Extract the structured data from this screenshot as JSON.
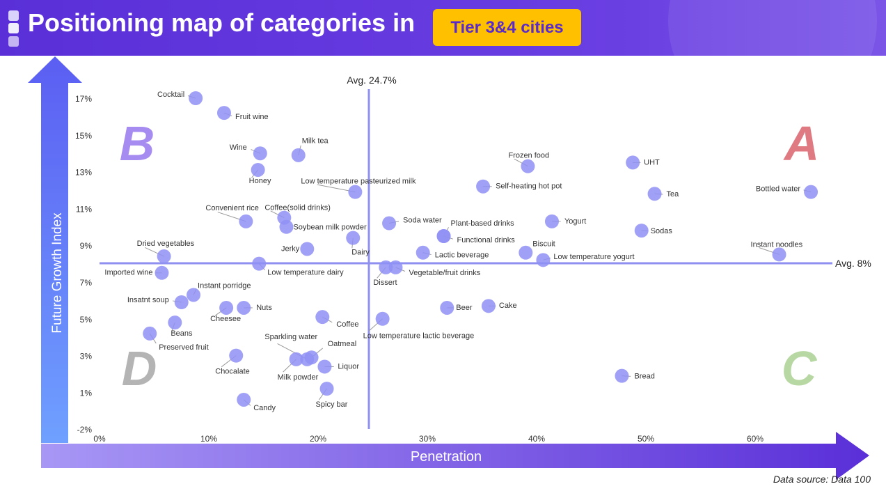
{
  "header": {
    "title": "Positioning map of categories in",
    "badge": "Tier 3&4 cities"
  },
  "footer": {
    "source": "Data source: Data 100"
  },
  "colors": {
    "header": "#5a2fd8",
    "badge": "#ffc000",
    "dot": "#8f91f5",
    "avg_line": "#8f8ff0",
    "quad_A": "#e07a82",
    "quad_B": "#a68cf0",
    "quad_C": "#b7d8a3",
    "quad_D": "#b4b4b4"
  },
  "chart_data": {
    "type": "scatter",
    "xlabel": "Penetration",
    "ylabel": "Future Growth Index",
    "x_ticks": [
      "0%",
      "10%",
      "20%",
      "30%",
      "40%",
      "50%",
      "60%"
    ],
    "y_ticks": [
      "17%",
      "15%",
      "13%",
      "11%",
      "9%",
      "7%",
      "5%",
      "3%",
      "1%",
      "-2%"
    ],
    "avg_x": {
      "value": 24.7,
      "label": "Avg. 24.7%"
    },
    "avg_y": {
      "value": 8,
      "label": "Avg. 8%"
    },
    "quadrants": [
      "A",
      "B",
      "C",
      "D"
    ],
    "points": [
      {
        "name": "Cocktail",
        "x": 8.8,
        "y": 17.0
      },
      {
        "name": "Fruit wine",
        "x": 11.4,
        "y": 16.2
      },
      {
        "name": "Wine",
        "x": 14.7,
        "y": 14.0
      },
      {
        "name": "Milk tea",
        "x": 18.2,
        "y": 13.9
      },
      {
        "name": "Honey",
        "x": 14.5,
        "y": 13.1
      },
      {
        "name": "Low temperature pasteurized milk",
        "x": 23.4,
        "y": 11.9
      },
      {
        "name": "Convenient rice",
        "x": 13.4,
        "y": 10.3
      },
      {
        "name": "Coffee(solid drinks)",
        "x": 16.9,
        "y": 10.5
      },
      {
        "name": "Soybean milk powder",
        "x": 17.1,
        "y": 10.0
      },
      {
        "name": "Jerky",
        "x": 19.0,
        "y": 8.8
      },
      {
        "name": "Dairy",
        "x": 23.2,
        "y": 9.4
      },
      {
        "name": "Soda water",
        "x": 26.5,
        "y": 10.2
      },
      {
        "name": "Plant-based drinks",
        "x": 31.5,
        "y": 9.5
      },
      {
        "name": "Functional drinks",
        "x": 31.5,
        "y": 9.5
      },
      {
        "name": "Lactic beverage",
        "x": 29.6,
        "y": 8.6
      },
      {
        "name": "Self-heating hot pot",
        "x": 35.1,
        "y": 12.2
      },
      {
        "name": "Frozen food",
        "x": 39.2,
        "y": 13.3
      },
      {
        "name": "UHT",
        "x": 48.8,
        "y": 13.5
      },
      {
        "name": "Tea",
        "x": 50.8,
        "y": 11.8
      },
      {
        "name": "Bottled water",
        "x": 65.1,
        "y": 11.9
      },
      {
        "name": "Yogurt",
        "x": 41.4,
        "y": 10.3
      },
      {
        "name": "Sodas",
        "x": 49.6,
        "y": 9.8
      },
      {
        "name": "Biscuit",
        "x": 39.0,
        "y": 8.6
      },
      {
        "name": "Low temperature yogurt",
        "x": 40.6,
        "y": 8.2
      },
      {
        "name": "Instant noodles",
        "x": 62.2,
        "y": 8.5
      },
      {
        "name": "Dried vegetables",
        "x": 5.9,
        "y": 8.4
      },
      {
        "name": "Imported wine",
        "x": 5.7,
        "y": 7.5
      },
      {
        "name": "Low temperature dairy",
        "x": 14.6,
        "y": 8.0
      },
      {
        "name": "Dissert",
        "x": 26.2,
        "y": 7.8
      },
      {
        "name": "Vegetable/fruit drinks",
        "x": 27.1,
        "y": 7.8
      },
      {
        "name": "Instant porridge",
        "x": 8.6,
        "y": 6.3
      },
      {
        "name": "Insatnt soup",
        "x": 7.5,
        "y": 5.9
      },
      {
        "name": "Cheesee",
        "x": 11.6,
        "y": 5.6
      },
      {
        "name": "Nuts",
        "x": 13.2,
        "y": 5.6
      },
      {
        "name": "Beer",
        "x": 31.8,
        "y": 5.6
      },
      {
        "name": "Cake",
        "x": 35.6,
        "y": 5.7
      },
      {
        "name": "Coffee",
        "x": 20.4,
        "y": 5.1
      },
      {
        "name": "Low temperature lactic beverage",
        "x": 25.9,
        "y": 5.0
      },
      {
        "name": "Beans",
        "x": 6.9,
        "y": 4.8
      },
      {
        "name": "Preserved fruit",
        "x": 4.6,
        "y": 4.2
      },
      {
        "name": "Chocalate",
        "x": 12.5,
        "y": 3.0
      },
      {
        "name": "Sparkling water",
        "x": 19.0,
        "y": 2.8
      },
      {
        "name": "Oatmeal",
        "x": 19.4,
        "y": 2.9
      },
      {
        "name": "Milk powder",
        "x": 18.0,
        "y": 2.8
      },
      {
        "name": "Liquor",
        "x": 20.6,
        "y": 2.4
      },
      {
        "name": "Spicy bar",
        "x": 20.8,
        "y": 1.2
      },
      {
        "name": "Candy",
        "x": 13.2,
        "y": 0.6
      },
      {
        "name": "Bread",
        "x": 47.8,
        "y": 1.9
      }
    ]
  }
}
